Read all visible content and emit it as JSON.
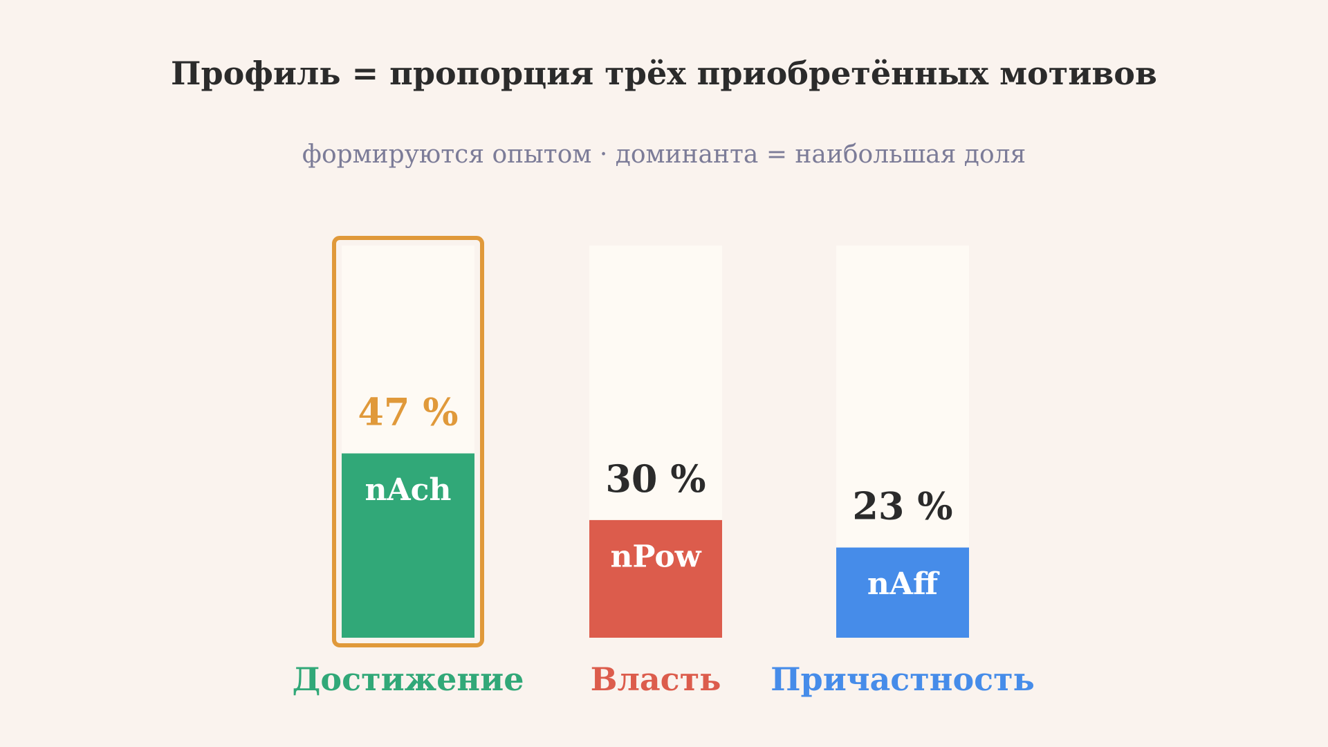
{
  "chart_data": {
    "type": "bar",
    "title": "Профиль = пропорция трёх приобретённых мотивов",
    "subtitle": "формируются опытом · доминанта = наибольшая доля",
    "categories": [
      "Достижение",
      "Власть",
      "Причастность"
    ],
    "codes": [
      "nAch",
      "nPow",
      "nAff"
    ],
    "values": [
      47,
      30,
      23
    ],
    "value_labels": [
      "47 %",
      "30 %",
      "23 %"
    ],
    "colors": [
      "#31a878",
      "#dc5c4c",
      "#468ce9"
    ],
    "ylim": [
      0,
      100
    ],
    "track_color": "#fefaf4",
    "highlight_color": "#e0993a"
  }
}
